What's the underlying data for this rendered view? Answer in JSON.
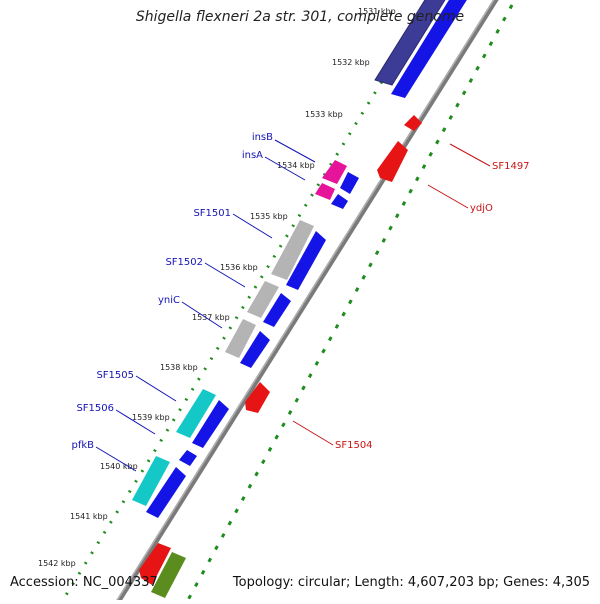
{
  "title": "Shigella flexneri 2a str. 301, complete genome",
  "footer": {
    "accession": "Accession: NC_004337",
    "topology": "Topology: circular; Length: 4,607,203 bp; Genes: 4,305"
  },
  "kbp_labels": [
    "1531 kbp",
    "1532 kbp",
    "1533 kbp",
    "1534 kbp",
    "1535 kbp",
    "1536 kbp",
    "1537 kbp",
    "1538 kbp",
    "1539 kbp",
    "1540 kbp",
    "1541 kbp",
    "1542 kbp"
  ],
  "gene_labels_left": [
    "insB",
    "insA",
    "SF1501",
    "SF1502",
    "yniC",
    "SF1505",
    "SF1506",
    "pfkB"
  ],
  "gene_labels_right": [
    "SF1497",
    "ydjO",
    "SF1504"
  ],
  "colors": {
    "forward_cds": "#1414e6",
    "reverse_cds": "#e61414",
    "insertion": "#e6149a",
    "pseudo": "#b4b4b4",
    "cyan": "#14c8c8",
    "dark_blue": "#3c3c96",
    "olive": "#5a8c1e",
    "backbone": "#808080",
    "left_label": "#1414b4",
    "right_label": "#c81414",
    "tick_green": "#1e8c1e"
  }
}
